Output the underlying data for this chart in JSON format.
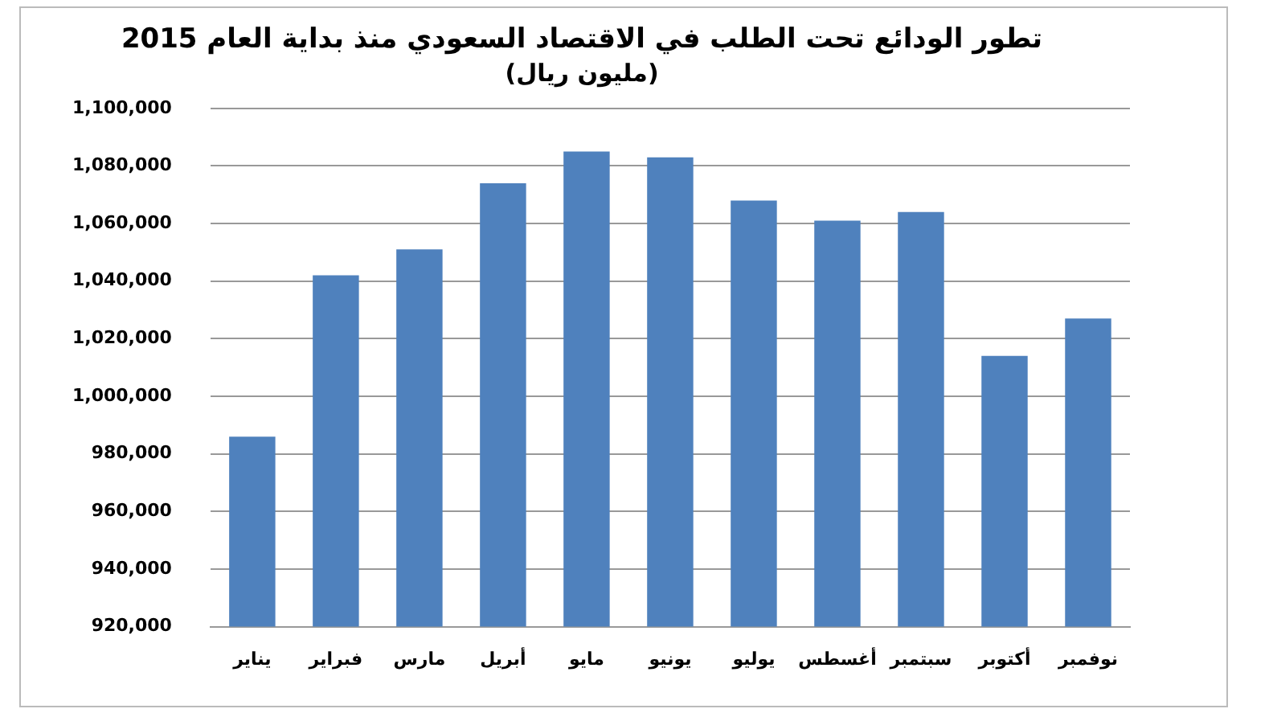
{
  "chart_data": {
    "type": "bar",
    "title": "تطور الودائع تحت الطلب في الاقتصاد السعودي منذ بداية العام 2015",
    "subtitle": "(مليون ريال)",
    "categories": [
      "يناير",
      "فبراير",
      "مارس",
      "أبريل",
      "مايو",
      "يونيو",
      "يوليو",
      "أغسطس",
      "سبتمبر",
      "أكتوبر",
      "نوفمبر"
    ],
    "values": [
      986000,
      1042000,
      1051000,
      1074000,
      1085000,
      1083000,
      1068000,
      1061000,
      1064000,
      1014000,
      1027000
    ],
    "color": "#4f81bd",
    "ylim": [
      920000,
      1100000
    ],
    "yticks": [
      {
        "value": 920000,
        "label": "920,000"
      },
      {
        "value": 940000,
        "label": "940,000"
      },
      {
        "value": 960000,
        "label": "960,000"
      },
      {
        "value": 980000,
        "label": "980,000"
      },
      {
        "value": 1000000,
        "label": "1,000,000"
      },
      {
        "value": 1020000,
        "label": "1,020,000"
      },
      {
        "value": 1040000,
        "label": "1,040,000"
      },
      {
        "value": 1060000,
        "label": "1,060,000"
      },
      {
        "value": 1080000,
        "label": "1,080,000"
      },
      {
        "value": 1100000,
        "label": "1,100,000"
      }
    ],
    "grid": "y"
  }
}
